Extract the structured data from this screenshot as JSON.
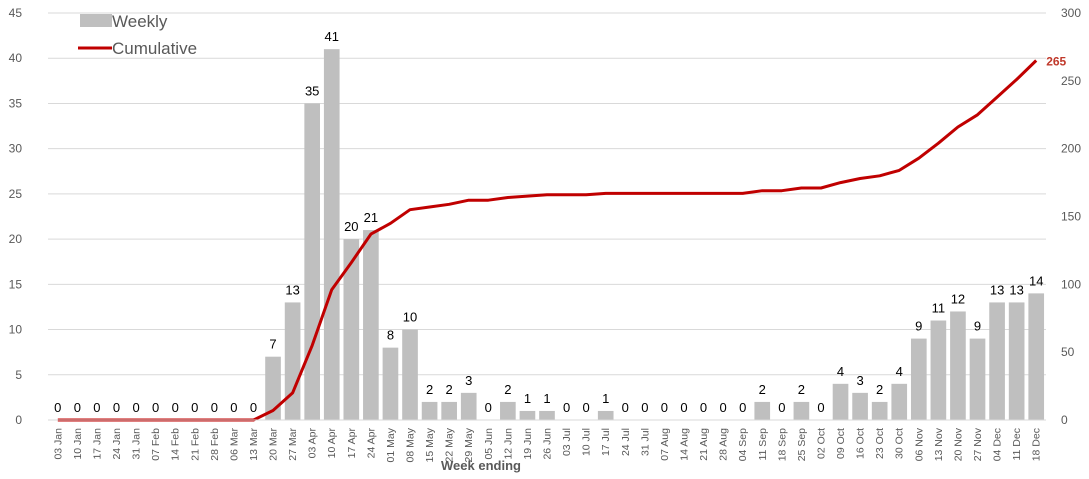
{
  "chart_data": {
    "type": "bar",
    "xlabel": "Week ending",
    "categories": [
      "03 Jan",
      "10 Jan",
      "17 Jan",
      "24 Jan",
      "31 Jan",
      "07 Feb",
      "14 Feb",
      "21 Feb",
      "28 Feb",
      "06 Mar",
      "13 Mar",
      "20 Mar",
      "27 Mar",
      "03 Apr",
      "10 Apr",
      "17 Apr",
      "24 Apr",
      "01 May",
      "08 May",
      "15 May",
      "22 May",
      "29 May",
      "05 Jun",
      "12 Jun",
      "19 Jun",
      "26 Jun",
      "03 Jul",
      "10 Jul",
      "17 Jul",
      "24 Jul",
      "31 Jul",
      "07 Aug",
      "14 Aug",
      "21 Aug",
      "28 Aug",
      "04 Sep",
      "11 Sep",
      "18 Sep",
      "25 Sep",
      "02 Oct",
      "09 Oct",
      "16 Oct",
      "23 Oct",
      "30 Oct",
      "06 Nov",
      "13 Nov",
      "20 Nov",
      "27 Nov",
      "04 Dec",
      "11 Dec",
      "18 Dec"
    ],
    "series": [
      {
        "name": "Weekly",
        "type": "bar",
        "axis": "left",
        "values": [
          0,
          0,
          0,
          0,
          0,
          0,
          0,
          0,
          0,
          0,
          0,
          7,
          13,
          35,
          41,
          20,
          21,
          8,
          10,
          2,
          2,
          3,
          0,
          2,
          1,
          1,
          0,
          0,
          1,
          0,
          0,
          0,
          0,
          0,
          0,
          0,
          2,
          0,
          2,
          0,
          4,
          3,
          2,
          4,
          9,
          11,
          12,
          9,
          13,
          13,
          14
        ]
      },
      {
        "name": "Cumulative",
        "type": "line",
        "axis": "right",
        "values": [
          0,
          0,
          0,
          0,
          0,
          0,
          0,
          0,
          0,
          0,
          0,
          7,
          20,
          55,
          96,
          116,
          137,
          145,
          155,
          157,
          159,
          162,
          162,
          164,
          165,
          166,
          166,
          166,
          167,
          167,
          167,
          167,
          167,
          167,
          167,
          167,
          169,
          169,
          171,
          171,
          175,
          178,
          180,
          184,
          193,
          204,
          216,
          225,
          238,
          251,
          265
        ]
      }
    ],
    "y_left": {
      "min": 0,
      "max": 45,
      "ticks": [
        0,
        5,
        10,
        15,
        20,
        25,
        30,
        35,
        40,
        45
      ]
    },
    "y_right": {
      "min": 0,
      "max": 300,
      "ticks": [
        0,
        50,
        100,
        150,
        200,
        250,
        300
      ]
    },
    "end_label": "265",
    "legend": {
      "position": "top-left",
      "entries": [
        "Weekly",
        "Cumulative"
      ]
    },
    "grid": true,
    "colors": {
      "bar": "#bfbfbf",
      "line": "#c00000",
      "grid": "#d9d9d9",
      "end_label": "#c0392b"
    }
  }
}
